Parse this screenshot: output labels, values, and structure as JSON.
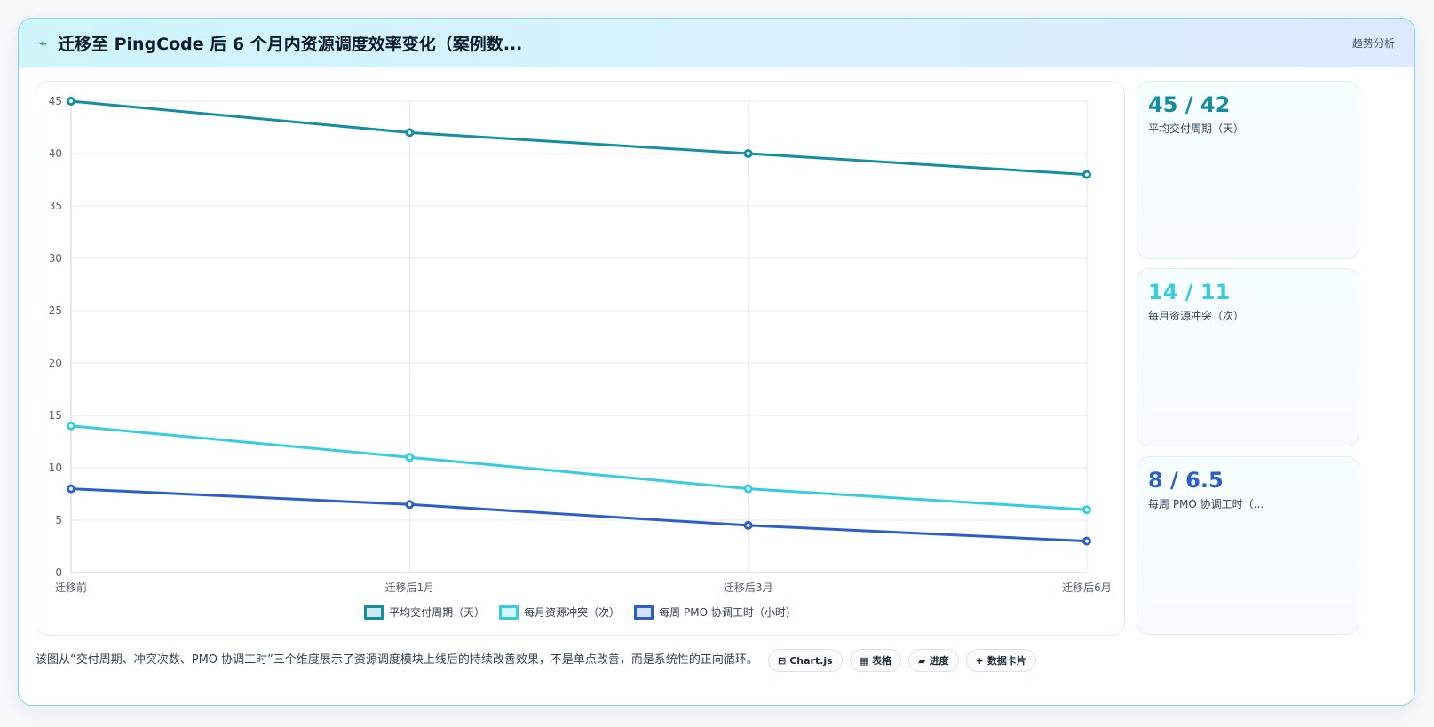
{
  "header": {
    "icon": "bolt-icon",
    "title": "迁移至 PingCode 后 6 个月内资源调度效率变化（案例数...",
    "tag": "趋势分析"
  },
  "colors": {
    "cycle": "#148ea1",
    "conflict": "#35cde0",
    "pmo": "#2c5fcc"
  },
  "chart_data": {
    "type": "line",
    "categories": [
      "迁移前",
      "迁移后1月",
      "迁移后3月",
      "迁移后6月"
    ],
    "series": [
      {
        "name": "平均交付周期（天）",
        "values": [
          45,
          42,
          40,
          38
        ],
        "color": "#148ea1"
      },
      {
        "name": "每月资源冲突（次）",
        "values": [
          14,
          11,
          8,
          6
        ],
        "color": "#35cde0"
      },
      {
        "name": "每周 PMO 协调工时（小时）",
        "values": [
          8,
          6.5,
          4.5,
          3
        ],
        "color": "#2c5fcc"
      }
    ],
    "ylim": [
      0,
      45
    ],
    "yticks": [
      0,
      5,
      10,
      15,
      20,
      25,
      30,
      35,
      40,
      45
    ],
    "grid": true,
    "legend": "bottom-center"
  },
  "stats": [
    {
      "value": "45 / 42",
      "label": "平均交付周期（天）",
      "color": "#148ea1"
    },
    {
      "value": "14 / 11",
      "label": "每月资源冲突（次）",
      "color": "#35cde0"
    },
    {
      "value": "8 / 6.5",
      "label": "每周 PMO 协调工时（...",
      "color": "#2c5fcc"
    }
  ],
  "footer": {
    "text": "该图从“交付周期、冲突次数、PMO 协调工时”三个维度展示了资源调度模块上线后的持续改善效果，不是单点改善，而是系统性的正向循环。",
    "chips": [
      {
        "icon": "chart-icon",
        "glyph": "⊟",
        "label": "Chart.js"
      },
      {
        "icon": "table-icon",
        "glyph": "▦",
        "label": "表格"
      },
      {
        "icon": "progress-icon",
        "glyph": "▰",
        "label": "进度"
      },
      {
        "icon": "plus-icon",
        "glyph": "+",
        "label": "数据卡片"
      }
    ]
  }
}
